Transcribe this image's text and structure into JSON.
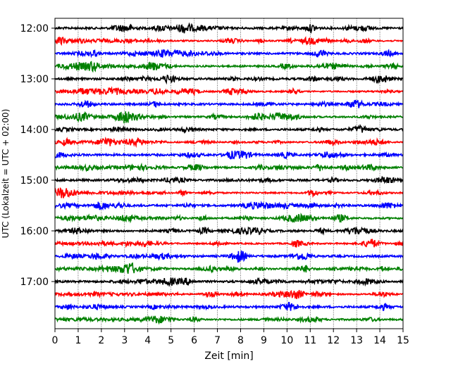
{
  "chart_data": {
    "type": "line",
    "title": "",
    "xlabel": "Zeit  [min]",
    "ylabel": "UTC (Lokalzeit = UTC + 02:00)",
    "xlim": [
      0,
      15
    ],
    "x_ticks": [
      "0",
      "1",
      "2",
      "3",
      "4",
      "5",
      "6",
      "7",
      "8",
      "9",
      "10",
      "11",
      "12",
      "13",
      "14",
      "15"
    ],
    "y_ticks": [
      "12:00",
      "13:00",
      "14:00",
      "15:00",
      "16:00",
      "17:00"
    ],
    "grid": "vertical dotted lines at each minute",
    "row_interval_minutes": 15,
    "trace_colors": [
      "#000000",
      "#ff0000",
      "#0000ff",
      "#008000"
    ],
    "series": [
      {
        "start": "12:00",
        "color": "#000000"
      },
      {
        "start": "12:15",
        "color": "#ff0000"
      },
      {
        "start": "12:30",
        "color": "#0000ff"
      },
      {
        "start": "12:45",
        "color": "#008000"
      },
      {
        "start": "13:00",
        "color": "#000000"
      },
      {
        "start": "13:15",
        "color": "#ff0000"
      },
      {
        "start": "13:30",
        "color": "#0000ff"
      },
      {
        "start": "13:45",
        "color": "#008000"
      },
      {
        "start": "14:00",
        "color": "#000000"
      },
      {
        "start": "14:15",
        "color": "#ff0000"
      },
      {
        "start": "14:30",
        "color": "#0000ff"
      },
      {
        "start": "14:45",
        "color": "#008000"
      },
      {
        "start": "15:00",
        "color": "#000000"
      },
      {
        "start": "15:15",
        "color": "#ff0000"
      },
      {
        "start": "15:30",
        "color": "#0000ff"
      },
      {
        "start": "15:45",
        "color": "#008000"
      },
      {
        "start": "16:00",
        "color": "#000000"
      },
      {
        "start": "16:15",
        "color": "#ff0000"
      },
      {
        "start": "16:30",
        "color": "#0000ff"
      },
      {
        "start": "16:45",
        "color": "#008000"
      },
      {
        "start": "17:00",
        "color": "#000000"
      },
      {
        "start": "17:15",
        "color": "#ff0000"
      },
      {
        "start": "17:30",
        "color": "#0000ff"
      },
      {
        "start": "17:45",
        "color": "#008000"
      }
    ]
  }
}
